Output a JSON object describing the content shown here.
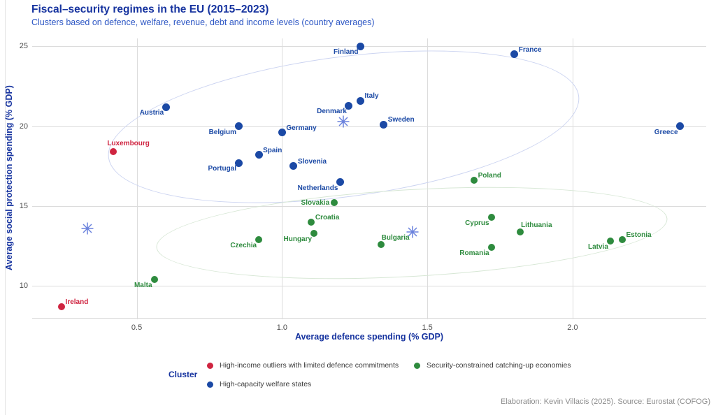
{
  "header": {
    "title": "Fiscal–security regimes in the EU (2015–2023)",
    "subtitle": "Clusters based on defence, welfare, revenue, debt and income levels (country averages)"
  },
  "footer": {
    "credit": "Elaboration: Kevin Villacis (2025). Source: Eurostat (COFOG)"
  },
  "legend": {
    "label": "Cluster",
    "items": [
      {
        "label": "High-income outliers with limited defence commitments",
        "color": "#cf2440"
      },
      {
        "label": "Security-constrained catching-up economies",
        "color": "#2e8b3e"
      },
      {
        "label": "High-capacity welfare states",
        "color": "#1b49a5"
      }
    ]
  },
  "chart_data": {
    "type": "scatter",
    "title": "Fiscal–security regimes in the EU (2015–2023)",
    "xlabel": "Average defence spending (% GDP)",
    "ylabel": "Average social protection spending (% GDP)",
    "xlim": [
      0.14,
      2.46
    ],
    "ylim": [
      8.0,
      25.5
    ],
    "xticks": [
      "0.5",
      "1.0",
      "1.5",
      "2.0"
    ],
    "xtick_values": [
      0.5,
      1.0,
      1.5,
      2.0
    ],
    "yticks": [
      "10",
      "15",
      "20",
      "25"
    ],
    "ytick_values": [
      10,
      15,
      20,
      25
    ],
    "grid": true,
    "centroid_color": "#6b82dd",
    "clusters": [
      {
        "name": "High-income outliers with limited defence commitments",
        "color": "#cf2440",
        "centroid": [
          0.33,
          13.6
        ],
        "ellipse": null
      },
      {
        "name": "High-capacity welfare states",
        "color": "#1b49a5",
        "centroid": [
          1.21,
          20.3
        ],
        "ellipse": {
          "cx": 1.21,
          "cy": 20.0,
          "rx": 0.815,
          "ry": 4.36,
          "rot": -7.5,
          "color": "#ccd4f1"
        }
      },
      {
        "name": "Security-constrained catching-up economies",
        "color": "#2e8b3e",
        "centroid": [
          1.45,
          13.4
        ],
        "ellipse": {
          "cx": 1.445,
          "cy": 13.36,
          "rx": 0.878,
          "ry": 2.7,
          "rot": -3.2,
          "color": "#d7e7d5"
        }
      }
    ],
    "points": [
      {
        "label": "Luxembourg",
        "cluster": 0,
        "x": 0.42,
        "y": 18.4,
        "pos": "a"
      },
      {
        "label": "Ireland",
        "cluster": 0,
        "x": 0.24,
        "y": 8.7,
        "pos": "ra"
      },
      {
        "label": "Austria",
        "cluster": 1,
        "x": 0.6,
        "y": 21.2,
        "pos": "lb"
      },
      {
        "label": "Belgium",
        "cluster": 1,
        "x": 0.85,
        "y": 20.0,
        "pos": "lb"
      },
      {
        "label": "Germany",
        "cluster": 1,
        "x": 1.0,
        "y": 19.6,
        "pos": "ra"
      },
      {
        "label": "Spain",
        "cluster": 1,
        "x": 0.92,
        "y": 18.2,
        "pos": "ra"
      },
      {
        "label": "Portugal",
        "cluster": 1,
        "x": 0.85,
        "y": 17.7,
        "pos": "lb"
      },
      {
        "label": "Slovenia",
        "cluster": 1,
        "x": 1.04,
        "y": 17.5,
        "pos": "ra"
      },
      {
        "label": "Netherlands",
        "cluster": 1,
        "x": 1.2,
        "y": 16.5,
        "pos": "lb"
      },
      {
        "label": "Denmark",
        "cluster": 1,
        "x": 1.23,
        "y": 21.3,
        "pos": "lb"
      },
      {
        "label": "Italy",
        "cluster": 1,
        "x": 1.27,
        "y": 21.6,
        "pos": "ra"
      },
      {
        "label": "Finland",
        "cluster": 1,
        "x": 1.27,
        "y": 25.0,
        "pos": "lb"
      },
      {
        "label": "Sweden",
        "cluster": 1,
        "x": 1.35,
        "y": 20.1,
        "pos": "ra"
      },
      {
        "label": "France",
        "cluster": 1,
        "x": 1.8,
        "y": 24.5,
        "pos": "ra"
      },
      {
        "label": "Greece",
        "cluster": 1,
        "x": 2.37,
        "y": 20.0,
        "pos": "lb"
      },
      {
        "label": "Malta",
        "cluster": 2,
        "x": 0.56,
        "y": 10.4,
        "pos": "lb"
      },
      {
        "label": "Czechia",
        "cluster": 2,
        "x": 0.92,
        "y": 12.9,
        "pos": "lb"
      },
      {
        "label": "Hungary",
        "cluster": 2,
        "x": 1.11,
        "y": 13.3,
        "pos": "lb"
      },
      {
        "label": "Croatia",
        "cluster": 2,
        "x": 1.1,
        "y": 14.0,
        "pos": "ra"
      },
      {
        "label": "Slovakia",
        "cluster": 2,
        "x": 1.18,
        "y": 15.2,
        "pos": "l"
      },
      {
        "label": "Bulgaria",
        "cluster": 2,
        "x": 1.34,
        "y": 12.6,
        "pos": "ar"
      },
      {
        "label": "Poland",
        "cluster": 2,
        "x": 1.66,
        "y": 16.6,
        "pos": "ra"
      },
      {
        "label": "Cyprus",
        "cluster": 2,
        "x": 1.72,
        "y": 14.3,
        "pos": "lb"
      },
      {
        "label": "Romania",
        "cluster": 2,
        "x": 1.72,
        "y": 12.4,
        "pos": "lb"
      },
      {
        "label": "Lithuania",
        "cluster": 2,
        "x": 1.82,
        "y": 13.4,
        "pos": "ar"
      },
      {
        "label": "Latvia",
        "cluster": 2,
        "x": 2.13,
        "y": 12.8,
        "pos": "lb"
      },
      {
        "label": "Estonia",
        "cluster": 2,
        "x": 2.17,
        "y": 12.9,
        "pos": "ra"
      }
    ]
  }
}
